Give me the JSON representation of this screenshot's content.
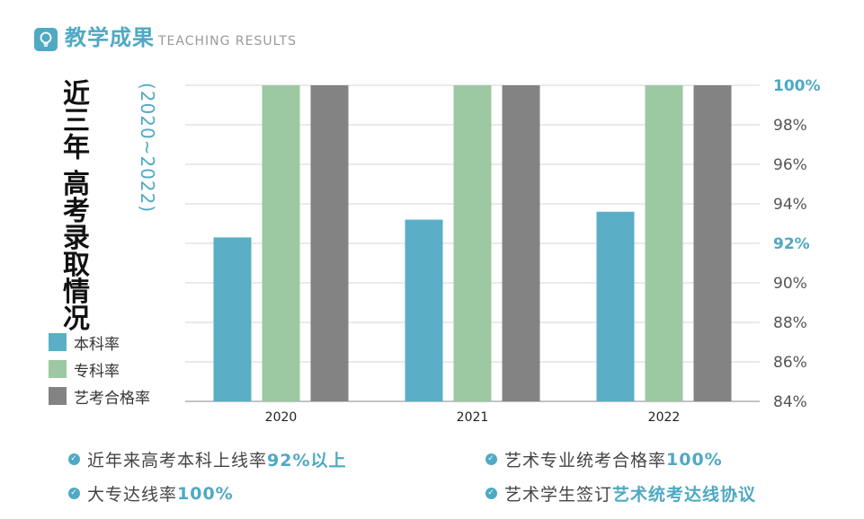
{
  "header": {
    "title": "教学成果",
    "subtitle": "TEACHING RESULTS",
    "icon": "lightbulb-icon"
  },
  "side_title": {
    "main": "近三年 高考录取情况",
    "years": "(2020~2022)"
  },
  "legend": {
    "items": [
      {
        "label": "本科率",
        "color": "#5aafc7"
      },
      {
        "label": "专科率",
        "color": "#9cc8a2"
      },
      {
        "label": "艺考合格率",
        "color": "#838383"
      }
    ]
  },
  "chart_data": {
    "type": "bar",
    "categories": [
      "2020",
      "2021",
      "2022"
    ],
    "series": [
      {
        "name": "本科率",
        "values": [
          92.3,
          93.2,
          93.6
        ],
        "color": "#5aafc7"
      },
      {
        "name": "专科率",
        "values": [
          100,
          100,
          100
        ],
        "color": "#9cc8a2"
      },
      {
        "name": "艺考合格率",
        "values": [
          100,
          100,
          100
        ],
        "color": "#838383"
      }
    ],
    "ylim": [
      84,
      100
    ],
    "yticks": [
      "84%",
      "86%",
      "88%",
      "90%",
      "92%",
      "94%",
      "96%",
      "98%",
      "100%"
    ],
    "highlight_ticks": [
      "92%",
      "100%"
    ],
    "y_axis_side": "right",
    "grid": true,
    "legend_position": "left"
  },
  "notes": {
    "n1_text": "近年来高考本科上线率",
    "n1_highlight": "92%以上",
    "n2_text": "艺术专业统考合格率",
    "n2_highlight": "100%",
    "n3_text": "大专达线率",
    "n3_highlight": "100%",
    "n4_text": "艺术学生签订",
    "n4_highlight": "艺术统考达线协议"
  },
  "colors": {
    "accent": "#4fa9c3",
    "grid": "#d4d4d4"
  }
}
